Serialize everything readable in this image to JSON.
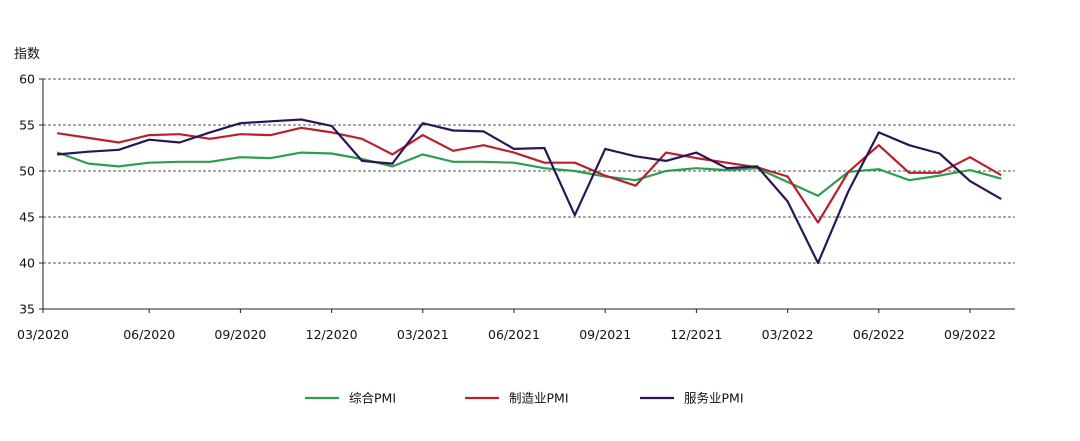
{
  "chart_data": {
    "type": "line",
    "title": "",
    "ylabel": "指数",
    "xlabel": "",
    "ylim": [
      35,
      60
    ],
    "yticks": [
      35,
      40,
      45,
      50,
      55,
      60
    ],
    "grid": "horizontal-dashed",
    "legend_position": "bottom",
    "x": [
      "03/2020",
      "04/2020",
      "05/2020",
      "06/2020",
      "07/2020",
      "08/2020",
      "09/2020",
      "10/2020",
      "11/2020",
      "12/2020",
      "01/2021",
      "02/2021",
      "03/2021",
      "04/2021",
      "05/2021",
      "06/2021",
      "07/2021",
      "08/2021",
      "09/2021",
      "10/2021",
      "11/2021",
      "12/2021",
      "01/2022",
      "02/2022",
      "03/2022",
      "04/2022",
      "05/2022",
      "06/2022",
      "07/2022",
      "08/2022",
      "09/2022",
      "10/2022"
    ],
    "xtick_labels": [
      "03/2020",
      "06/2020",
      "09/2020",
      "12/2020",
      "03/2021",
      "06/2021",
      "09/2021",
      "12/2021",
      "03/2022",
      "06/2022",
      "09/2022"
    ],
    "series": [
      {
        "name": "综合PMI",
        "color": "#2e9e4e",
        "values": [
          52.0,
          50.8,
          50.5,
          50.9,
          51.0,
          51.0,
          51.5,
          51.4,
          52.0,
          51.9,
          51.3,
          50.5,
          51.8,
          51.0,
          51.0,
          50.9,
          50.3,
          50.0,
          49.4,
          49.0,
          50.0,
          50.3,
          50.1,
          50.3,
          48.8,
          47.3,
          49.9,
          50.2,
          49.0,
          49.5,
          50.1,
          49.2
        ]
      },
      {
        "name": "制造业PMI",
        "color": "#b8202f",
        "values": [
          54.1,
          53.6,
          53.1,
          53.9,
          54.0,
          53.5,
          54.0,
          53.9,
          54.7,
          54.2,
          53.5,
          51.8,
          53.9,
          52.2,
          52.8,
          52.0,
          50.9,
          50.9,
          49.5,
          48.4,
          52.0,
          51.4,
          50.9,
          50.4,
          49.4,
          44.4,
          49.9,
          52.8,
          49.8,
          49.8,
          51.5,
          49.6
        ]
      },
      {
        "name": "服务业PMI",
        "color": "#2b1654",
        "values": [
          51.8,
          52.1,
          52.3,
          53.4,
          53.1,
          54.2,
          55.2,
          55.4,
          55.6,
          54.9,
          51.1,
          50.8,
          55.2,
          54.4,
          54.3,
          52.4,
          52.5,
          45.2,
          52.4,
          51.6,
          51.1,
          52.0,
          50.3,
          50.5,
          46.7,
          40.0,
          47.8,
          54.2,
          52.8,
          51.9,
          48.9,
          47.0
        ]
      }
    ]
  }
}
